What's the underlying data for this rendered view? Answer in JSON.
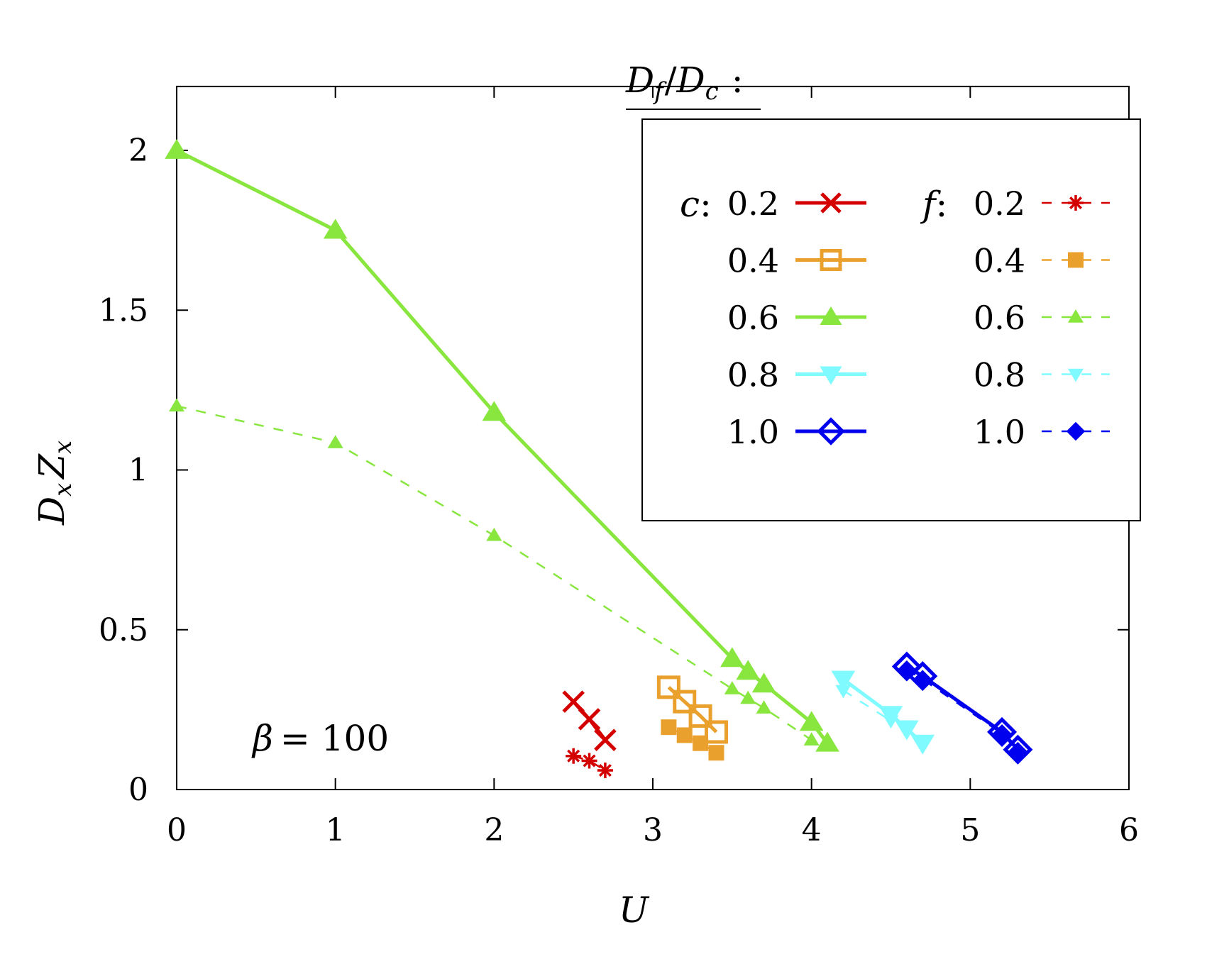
{
  "chart_data": {
    "type": "line",
    "xlabel": "U",
    "ylabel_main": "D",
    "ylabel_sub": "x",
    "ylabel_main2": "Z",
    "ylabel_sub2": "x",
    "xlim": [
      0,
      6
    ],
    "ylim": [
      0,
      2.2
    ],
    "xticks": [
      0,
      1,
      2,
      3,
      4,
      5,
      6
    ],
    "yticks": [
      0,
      0.5,
      1,
      1.5,
      2
    ],
    "xtick_labels": [
      "0",
      "1",
      "2",
      "3",
      "4",
      "5",
      "6"
    ],
    "ytick_labels": [
      "0",
      "0.5",
      "1",
      "1.5",
      "2"
    ],
    "annotation": {
      "symbol": "β",
      "text": "= 100"
    },
    "legend": {
      "title_num_main": "D",
      "title_num_sub": "f",
      "title_slash": "/",
      "title_den_main": "D",
      "title_den_sub": "c",
      "title_colon": ":",
      "col_c_label": "c",
      "col_f_label": "f",
      "colon": ":",
      "placement": "top-right"
    },
    "series": [
      {
        "name": "c: 0.2",
        "group": "c",
        "value_label": "0.2",
        "color": "#d40000",
        "marker": "x",
        "dashed": false,
        "x": [
          2.5,
          2.6,
          2.7
        ],
        "y": [
          0.275,
          0.22,
          0.155
        ]
      },
      {
        "name": "c: 0.4",
        "group": "c",
        "value_label": "0.4",
        "color": "#eaa02d",
        "marker": "square-open",
        "dashed": false,
        "x": [
          3.1,
          3.2,
          3.3,
          3.4
        ],
        "y": [
          0.32,
          0.275,
          0.23,
          0.18
        ]
      },
      {
        "name": "c: 0.6",
        "group": "c",
        "value_label": "0.6",
        "color": "#88e63f",
        "marker": "triangle-up",
        "dashed": false,
        "x": [
          0,
          1,
          2,
          3.5,
          3.6,
          3.7,
          4.0,
          4.1
        ],
        "y": [
          2.0,
          1.75,
          1.18,
          0.41,
          0.37,
          0.33,
          0.21,
          0.145
        ]
      },
      {
        "name": "c: 0.8",
        "group": "c",
        "value_label": "0.8",
        "color": "#7ffaff",
        "marker": "triangle-down",
        "dashed": false,
        "x": [
          4.2,
          4.5,
          4.6,
          4.7
        ],
        "y": [
          0.345,
          0.235,
          0.19,
          0.145
        ]
      },
      {
        "name": "c: 1.0",
        "group": "c",
        "value_label": "1.0",
        "color": "#0000ee",
        "marker": "diamond-open",
        "dashed": false,
        "x": [
          4.6,
          4.7,
          5.2,
          5.3
        ],
        "y": [
          0.385,
          0.355,
          0.18,
          0.125
        ]
      },
      {
        "name": "f: 0.2",
        "group": "f",
        "value_label": "0.2",
        "color": "#d40000",
        "marker": "asterisk",
        "dashed": true,
        "x": [
          2.5,
          2.6,
          2.7
        ],
        "y": [
          0.105,
          0.09,
          0.06
        ]
      },
      {
        "name": "f: 0.4",
        "group": "f",
        "value_label": "0.4",
        "color": "#eaa02d",
        "marker": "square-filled",
        "dashed": true,
        "x": [
          3.1,
          3.2,
          3.3,
          3.4
        ],
        "y": [
          0.195,
          0.17,
          0.145,
          0.115
        ]
      },
      {
        "name": "f: 0.6",
        "group": "f",
        "value_label": "0.6",
        "color": "#88e63f",
        "marker": "triangle-small",
        "dashed": true,
        "x": [
          0,
          1,
          2,
          3.5,
          3.6,
          3.7,
          4.0
        ],
        "y": [
          1.2,
          1.085,
          0.795,
          0.315,
          0.285,
          0.255,
          0.155
        ]
      },
      {
        "name": "f: 0.8",
        "group": "f",
        "value_label": "0.8",
        "color": "#7ffaff",
        "marker": "triangle-down-small",
        "dashed": true,
        "x": [
          4.2,
          4.5
        ],
        "y": [
          0.31,
          0.215
        ]
      },
      {
        "name": "f: 1.0",
        "group": "f",
        "value_label": "1.0",
        "color": "#0000ee",
        "marker": "diamond-filled",
        "dashed": true,
        "x": [
          4.6,
          4.7,
          5.2,
          5.3
        ],
        "y": [
          0.375,
          0.345,
          0.175,
          0.12
        ]
      }
    ]
  }
}
